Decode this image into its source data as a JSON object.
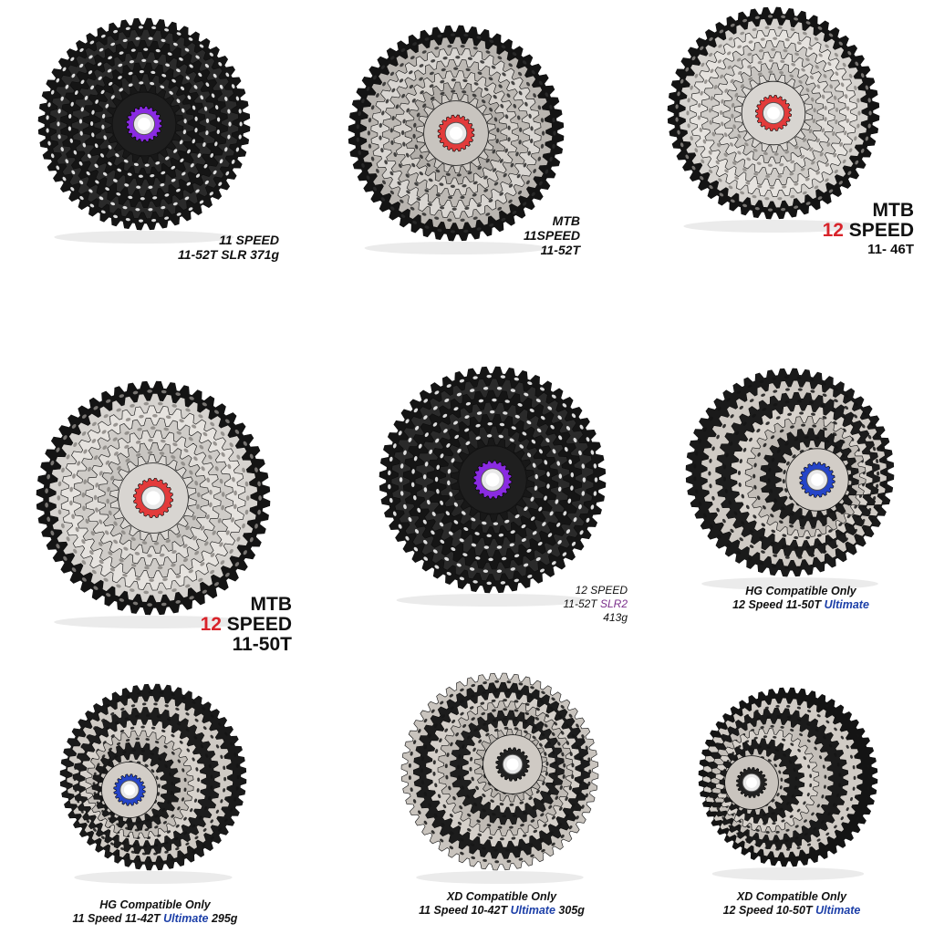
{
  "colors": {
    "red_accent": "#d8232a",
    "purple_accent": "#7a2e8a",
    "blue_accent": "#1c3fa8",
    "black_steel": "#1a1a1a",
    "silver_steel": "#c9c6c2"
  },
  "products": [
    {
      "icon": "black-cassette-purple-lockring-icon",
      "lines": [
        {
          "parts": [
            {
              "text": "11 SPEED"
            }
          ]
        },
        {
          "parts": [
            {
              "text": "11-52T SLR  371g"
            }
          ]
        }
      ]
    },
    {
      "icon": "black-silver-cassette-red-lockring-icon",
      "lines": [
        {
          "parts": [
            {
              "text": "MTB"
            }
          ]
        },
        {
          "parts": [
            {
              "text": "11SPEED"
            }
          ]
        },
        {
          "parts": [
            {
              "text": "11-52T"
            }
          ]
        }
      ]
    },
    {
      "icon": "silver-cassette-red-lockring-icon",
      "lines": [
        {
          "parts": [
            {
              "text": "MTB"
            }
          ]
        },
        {
          "parts": [
            {
              "text": "12",
              "accent": "red"
            },
            {
              "text": " SPEED"
            }
          ]
        },
        {
          "parts": [
            {
              "text": "11- 46T",
              "small": true
            }
          ]
        }
      ]
    },
    {
      "icon": "silver-cassette-red-lockring-icon",
      "lines": [
        {
          "parts": [
            {
              "text": "MTB"
            }
          ]
        },
        {
          "parts": [
            {
              "text": "12",
              "accent": "red"
            },
            {
              "text": " SPEED"
            }
          ]
        },
        {
          "parts": [
            {
              "text": "11-50T"
            }
          ]
        }
      ]
    },
    {
      "icon": "black-cassette-purple-lockring-icon",
      "lines": [
        {
          "parts": [
            {
              "text": "12 SPEED"
            }
          ]
        },
        {
          "parts": [
            {
              "text": "11-52T "
            },
            {
              "text": "SLR2",
              "accent": "purple"
            }
          ]
        },
        {
          "parts": [
            {
              "text": "413g"
            }
          ]
        }
      ]
    },
    {
      "icon": "silver-cassette-blue-lockring-icon",
      "lines": [
        {
          "parts": [
            {
              "text": "HG Compatible Only"
            }
          ]
        },
        {
          "parts": [
            {
              "text": "12 Speed 11-50T "
            },
            {
              "text": "Ultimate",
              "accent": "blue"
            }
          ]
        }
      ]
    },
    {
      "icon": "silver-cassette-blue-lockring-icon",
      "lines": [
        {
          "parts": [
            {
              "text": "HG Compatible Only"
            }
          ]
        },
        {
          "parts": [
            {
              "text": "11 Speed 11-42T "
            },
            {
              "text": "Ultimate",
              "accent": "blue"
            },
            {
              "text": " 295g"
            }
          ]
        }
      ]
    },
    {
      "icon": "silver-cassette-xd-icon",
      "lines": [
        {
          "parts": [
            {
              "text": "XD Compatible Only"
            }
          ]
        },
        {
          "parts": [
            {
              "text": "11 Speed 10-42T "
            },
            {
              "text": "Ultimate",
              "accent": "blue"
            },
            {
              "text": " 305g"
            }
          ]
        }
      ]
    },
    {
      "icon": "black-silver-cassette-xd-icon",
      "lines": [
        {
          "parts": [
            {
              "text": "XD Compatible Only"
            }
          ]
        },
        {
          "parts": [
            {
              "text": "12 Speed 10-50T "
            },
            {
              "text": "Ultimate",
              "accent": "blue"
            }
          ]
        }
      ]
    }
  ]
}
